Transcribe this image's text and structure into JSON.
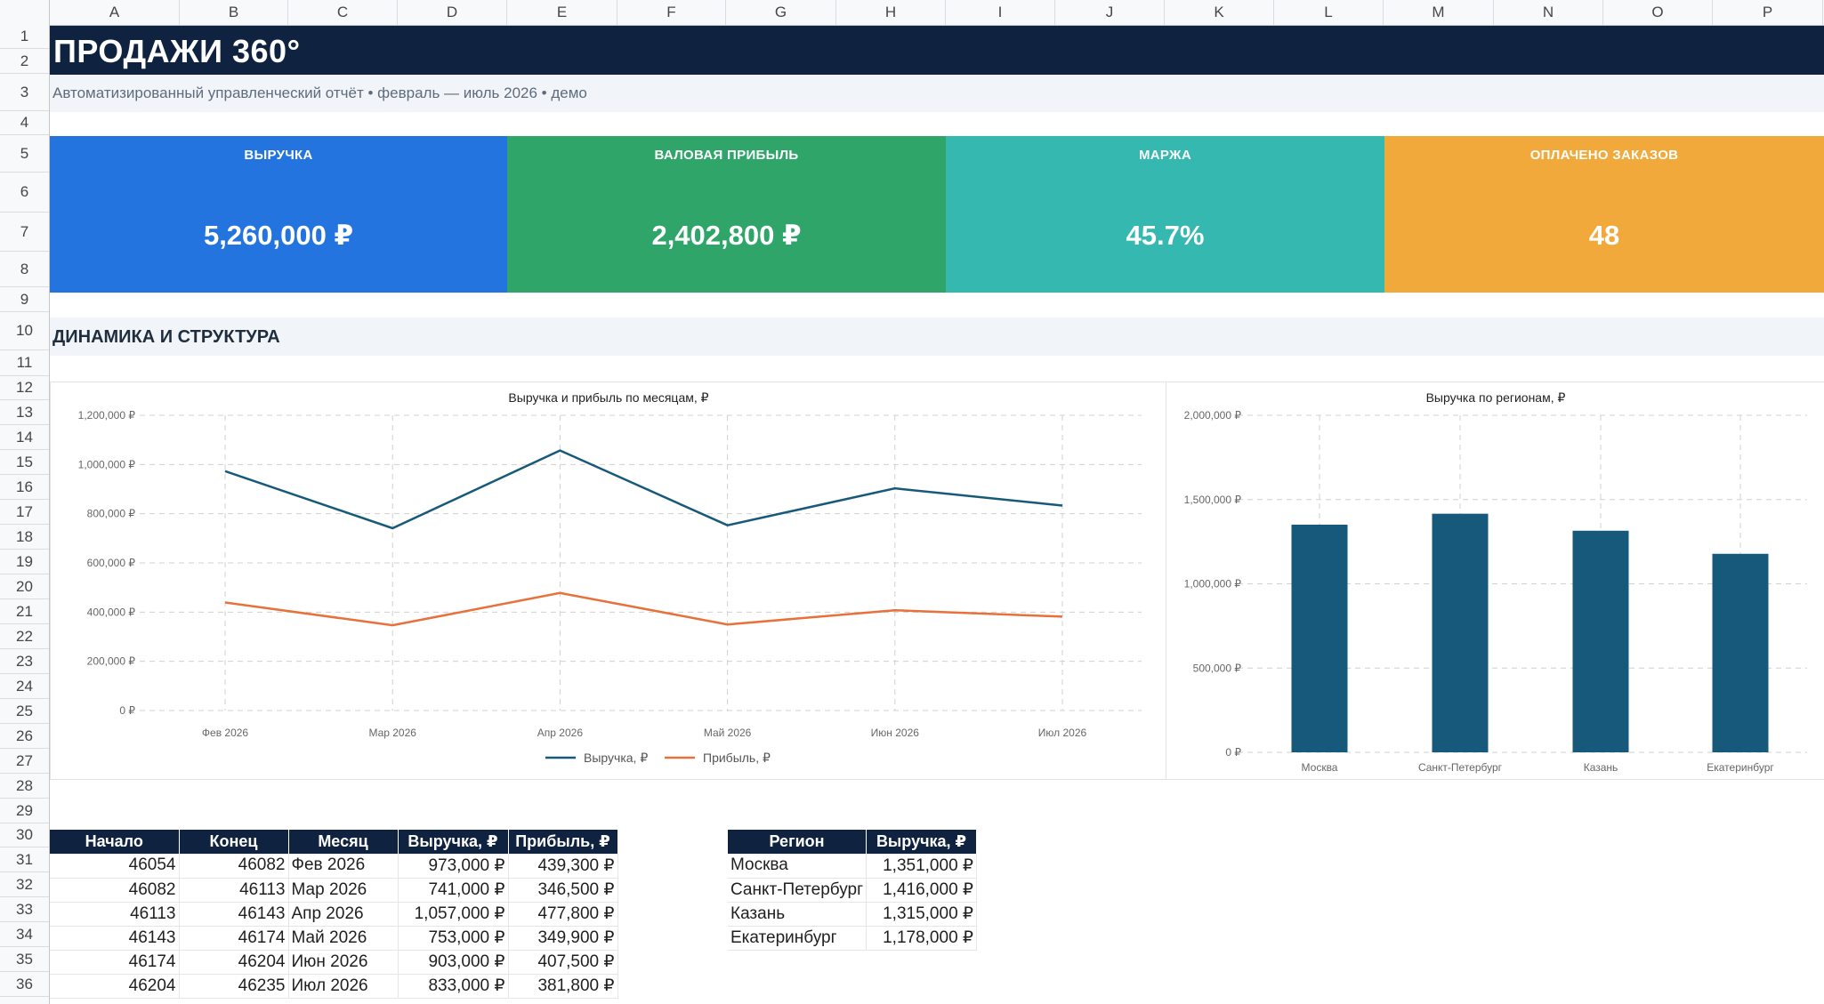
{
  "columns": [
    "A",
    "B",
    "C",
    "D",
    "E",
    "F",
    "G",
    "H",
    "I",
    "J",
    "K",
    "L",
    "M",
    "N",
    "O",
    "P"
  ],
  "rows": [
    "1",
    "2",
    "3",
    "4",
    "5",
    "6",
    "7",
    "8",
    "9",
    "10",
    "11",
    "12",
    "13",
    "14",
    "15",
    "16",
    "17",
    "18",
    "19",
    "20",
    "21",
    "22",
    "23",
    "24",
    "25",
    "26",
    "27",
    "28",
    "29",
    "30",
    "31",
    "32",
    "33",
    "34",
    "35",
    "36"
  ],
  "report": {
    "title": "ПРОДАЖИ 360°",
    "subtitle": "Автоматизированный управленческий отчёт • февраль — июль 2026 • демо",
    "section": "ДИНАМИКА И СТРУКТУРА"
  },
  "kpis": [
    {
      "label": "ВЫРУЧКА",
      "value": "5,260,000 ₽",
      "color": "#2474e0"
    },
    {
      "label": "ВАЛОВАЯ ПРИБЫЛЬ",
      "value": "2,402,800 ₽",
      "color": "#2fa56a"
    },
    {
      "label": "МАРЖА",
      "value": "45.7%",
      "color": "#35b8b0"
    },
    {
      "label": "ОПЛАЧЕНО ЗАКАЗОВ",
      "value": "48",
      "color": "#f0a93a"
    }
  ],
  "chart_data": [
    {
      "type": "line",
      "title": "Выручка и прибыль по месяцам, ₽",
      "categories": [
        "Фев 2026",
        "Мар 2026",
        "Апр 2026",
        "Май 2026",
        "Июн 2026",
        "Июл 2026"
      ],
      "series": [
        {
          "name": "Выручка, ₽",
          "color": "#17597a",
          "values": [
            973000,
            741000,
            1057000,
            753000,
            903000,
            833000
          ]
        },
        {
          "name": "Прибыль, ₽",
          "color": "#e8703a",
          "values": [
            439300,
            346500,
            477800,
            349900,
            407500,
            381800
          ]
        }
      ],
      "ylim": [
        0,
        1200000
      ],
      "yticks": [
        "0 ₽",
        "200,000 ₽",
        "400,000 ₽",
        "600,000 ₽",
        "800,000 ₽",
        "1,000,000 ₽",
        "1,200,000 ₽"
      ],
      "grid": true,
      "legend": "bottom"
    },
    {
      "type": "bar",
      "title": "Выручка по регионам, ₽",
      "categories": [
        "Москва",
        "Санкт-Петербург",
        "Казань",
        "Екатеринбург"
      ],
      "values": [
        1351000,
        1416000,
        1315000,
        1178000
      ],
      "color": "#17597a",
      "ylim": [
        0,
        2000000
      ],
      "yticks": [
        "0 ₽",
        "500,000 ₽",
        "1,000,000 ₽",
        "1,500,000 ₽",
        "2,000,000 ₽"
      ],
      "grid": true
    }
  ],
  "months_table": {
    "headers": [
      "Начало",
      "Конец",
      "Месяц",
      "Выручка, ₽",
      "Прибыль, ₽"
    ],
    "rows": [
      [
        "46054",
        "46082",
        "Фев 2026",
        "973,000 ₽",
        "439,300 ₽"
      ],
      [
        "46082",
        "46113",
        "Мар 2026",
        "741,000 ₽",
        "346,500 ₽"
      ],
      [
        "46113",
        "46143",
        "Апр 2026",
        "1,057,000 ₽",
        "477,800 ₽"
      ],
      [
        "46143",
        "46174",
        "Май 2026",
        "753,000 ₽",
        "349,900 ₽"
      ],
      [
        "46174",
        "46204",
        "Июн 2026",
        "903,000 ₽",
        "407,500 ₽"
      ],
      [
        "46204",
        "46235",
        "Июл 2026",
        "833,000 ₽",
        "381,800 ₽"
      ]
    ]
  },
  "regions_table": {
    "headers": [
      "Регион",
      "Выручка, ₽"
    ],
    "rows": [
      [
        "Москва",
        "1,351,000 ₽"
      ],
      [
        "Санкт-Петербург",
        "1,416,000 ₽"
      ],
      [
        "Казань",
        "1,315,000 ₽"
      ],
      [
        "Екатеринбург",
        "1,178,000 ₽"
      ]
    ]
  }
}
